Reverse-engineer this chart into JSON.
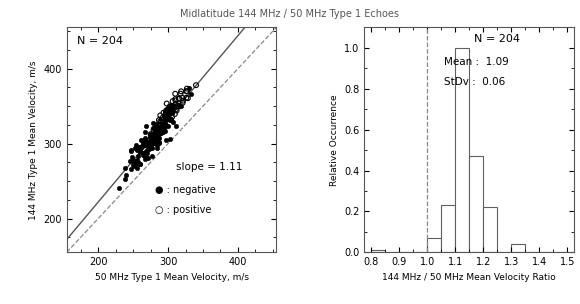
{
  "title": "Midlatitude 144 MHz / 50 MHz Type 1 Echoes",
  "scatter": {
    "N": 204,
    "slope": 1.11,
    "xlim": [
      155,
      455
    ],
    "ylim": [
      155,
      455
    ],
    "xticks": [
      200,
      300,
      400
    ],
    "yticks": [
      200,
      300,
      400
    ],
    "xlabel": "50 MHz Type 1 Mean Velocity, m/s",
    "ylabel": "144 MHz Type 1 Mean Velocity, m/s",
    "slope_label": "slope = 1.11",
    "legend_neg": "● : negative",
    "legend_pos": "○ : positive"
  },
  "histogram": {
    "N": 204,
    "mean": 1.09,
    "std": 0.06,
    "bin_edges": [
      0.8,
      0.85,
      0.9,
      0.95,
      1.0,
      1.05,
      1.1,
      1.15,
      1.2,
      1.25,
      1.3,
      1.35,
      1.4,
      1.45,
      1.5
    ],
    "rel_counts": [
      0.01,
      0.0,
      0.0,
      0.0,
      0.07,
      0.23,
      1.0,
      0.47,
      0.22,
      0.0,
      0.04,
      0.0,
      0.0,
      0.0
    ],
    "xlim": [
      0.775,
      1.525
    ],
    "ylim": [
      0.0,
      1.1
    ],
    "xticks": [
      0.8,
      0.9,
      1.0,
      1.1,
      1.2,
      1.3,
      1.4,
      1.5
    ],
    "yticks": [
      0.0,
      0.2,
      0.4,
      0.6,
      0.8,
      1.0
    ],
    "xlabel": "144 MHz / 50 MHz Mean Velocity Ratio",
    "ylabel": "Relative Occurrence",
    "vline_x": 1.0
  },
  "colors": {
    "background": "#ffffff",
    "plot_bg": "#ffffff",
    "text": "#000000",
    "hist_edge": "#606060"
  }
}
